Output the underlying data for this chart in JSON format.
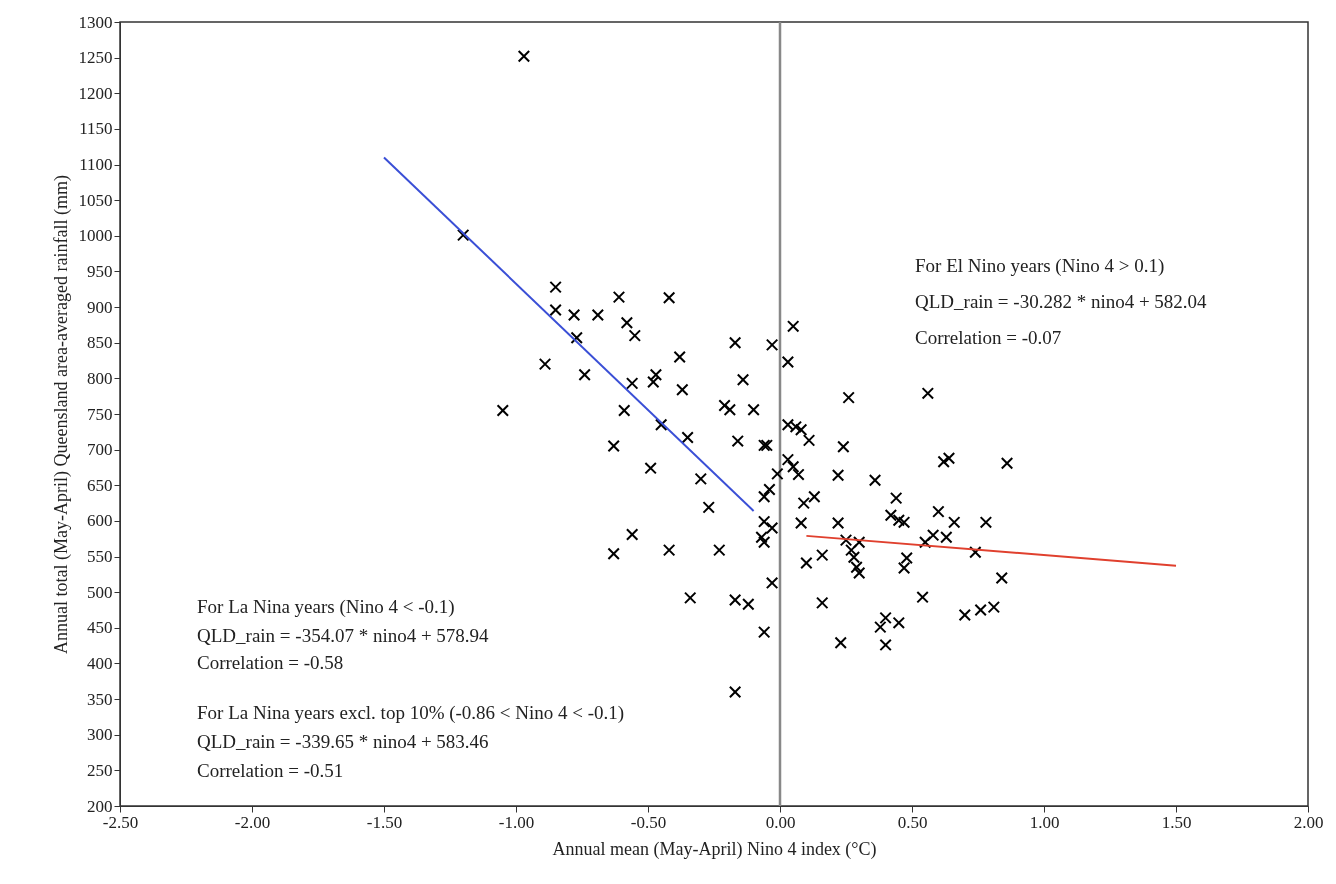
{
  "chart_data": {
    "type": "scatter",
    "xlabel": "Annual mean (May-April) Nino 4 index (°C)",
    "ylabel": "Annual total (May-April) Queensland area-averaged rainfall (mm)",
    "xlim": [
      -2.5,
      2.0
    ],
    "xticks": [
      {
        "value": -2.5,
        "label": "-2.50"
      },
      {
        "value": -2.0,
        "label": "-2.00"
      },
      {
        "value": -1.5,
        "label": "-1.50"
      },
      {
        "value": -1.0,
        "label": "-1.00"
      },
      {
        "value": -0.5,
        "label": "-0.50"
      },
      {
        "value": 0,
        "label": "0.00"
      },
      {
        "value": 0.5,
        "label": "0.50"
      },
      {
        "value": 1.0,
        "label": "1.00"
      },
      {
        "value": 1.5,
        "label": "1.50"
      },
      {
        "value": 2.0,
        "label": "2.00"
      }
    ],
    "ylim": [
      200,
      1300
    ],
    "yticks": [
      200,
      250,
      300,
      350,
      400,
      450,
      500,
      550,
      600,
      650,
      700,
      750,
      800,
      850,
      900,
      950,
      1000,
      1050,
      1100,
      1150,
      1200,
      1250,
      1300
    ],
    "grid": false,
    "series": [
      {
        "color": "#000000",
        "marker": "cross",
        "x": [
          -0.97,
          -1.2,
          -0.85,
          -0.85,
          -0.78,
          -0.69,
          -0.61,
          -0.42,
          -0.58,
          -0.55,
          -0.77,
          -0.89,
          -0.74,
          -0.38,
          -0.17,
          -0.03,
          0.05,
          0.03,
          -0.14,
          -0.47,
          -0.48,
          -0.56,
          -0.37,
          -1.05,
          -0.59,
          -0.45,
          -0.35,
          -0.21,
          -0.19,
          -0.1,
          -0.16,
          -0.06,
          -0.05,
          -0.63,
          -0.49,
          -0.3,
          -0.27,
          -0.63,
          -0.56,
          -0.42,
          -0.34,
          -0.23,
          -0.17,
          -0.12,
          -0.06,
          -0.17,
          -0.03,
          -0.01,
          -0.04,
          -0.06,
          -0.06,
          -0.03,
          -0.07,
          -0.06,
          0.03,
          0.06,
          0.08,
          0.11,
          0.03,
          0.05,
          0.07,
          0.09,
          0.13,
          0.08,
          0.22,
          0.26,
          0.24,
          0.22,
          0.36,
          0.44,
          0.42,
          0.45,
          0.47,
          0.56,
          0.62,
          0.64,
          0.86,
          0.6,
          0.66,
          0.78,
          0.25,
          0.3,
          0.27,
          0.28,
          0.29,
          0.3,
          0.55,
          0.58,
          0.63,
          0.74,
          0.48,
          0.47,
          0.16,
          0.1,
          0.84,
          0.54,
          0.16,
          0.7,
          0.76,
          0.81,
          0.4,
          0.38,
          0.45,
          0.4,
          0.23
        ],
        "values": [
          1252,
          1001,
          928,
          896,
          889,
          889,
          914,
          913,
          878,
          860,
          857,
          820,
          805,
          830,
          850,
          847,
          873,
          823,
          798,
          805,
          795,
          793,
          784,
          755,
          755,
          735,
          717,
          762,
          756,
          756,
          712,
          706,
          706,
          705,
          674,
          659,
          619,
          554,
          581,
          559,
          492,
          559,
          489,
          483,
          444,
          360,
          513,
          666,
          644,
          634,
          599,
          590,
          577,
          570,
          735,
          732,
          728,
          713,
          686,
          676,
          665,
          625,
          634,
          597,
          597,
          773,
          704,
          664,
          657,
          632,
          608,
          601,
          598,
          779,
          683,
          688,
          681,
          613,
          598,
          598,
          573,
          570,
          559,
          549,
          535,
          527,
          570,
          580,
          577,
          556,
          548,
          534,
          552,
          541,
          520,
          493,
          485,
          468,
          475,
          479,
          464,
          451,
          457,
          426,
          429
        ]
      },
      {
        "type": "line",
        "color": "#3a4fd6",
        "x": [
          -1.5,
          -0.1
        ],
        "values": [
          1110,
          614
        ]
      },
      {
        "type": "line",
        "color": "#e0402e",
        "x": [
          0.1,
          1.5
        ],
        "values": [
          579,
          537
        ]
      }
    ],
    "ref_lines": [
      {
        "axis": "x",
        "value": 0,
        "color": "#888888"
      }
    ],
    "annotations": [
      "For El Nino years (Nino 4 > 0.1)",
      "QLD_rain = -30.282 * nino4 + 582.04",
      "Correlation = -0.07",
      "For La Nina years (Nino 4 < -0.1)",
      "QLD_rain = -354.07 * nino4 + 578.94",
      "Correlation = -0.58",
      "For La Nina years excl. top 10% (-0.86 < Nino 4 < -0.1)",
      "QLD_rain = -339.65 * nino4 + 583.46",
      "Correlation = -0.51"
    ]
  }
}
